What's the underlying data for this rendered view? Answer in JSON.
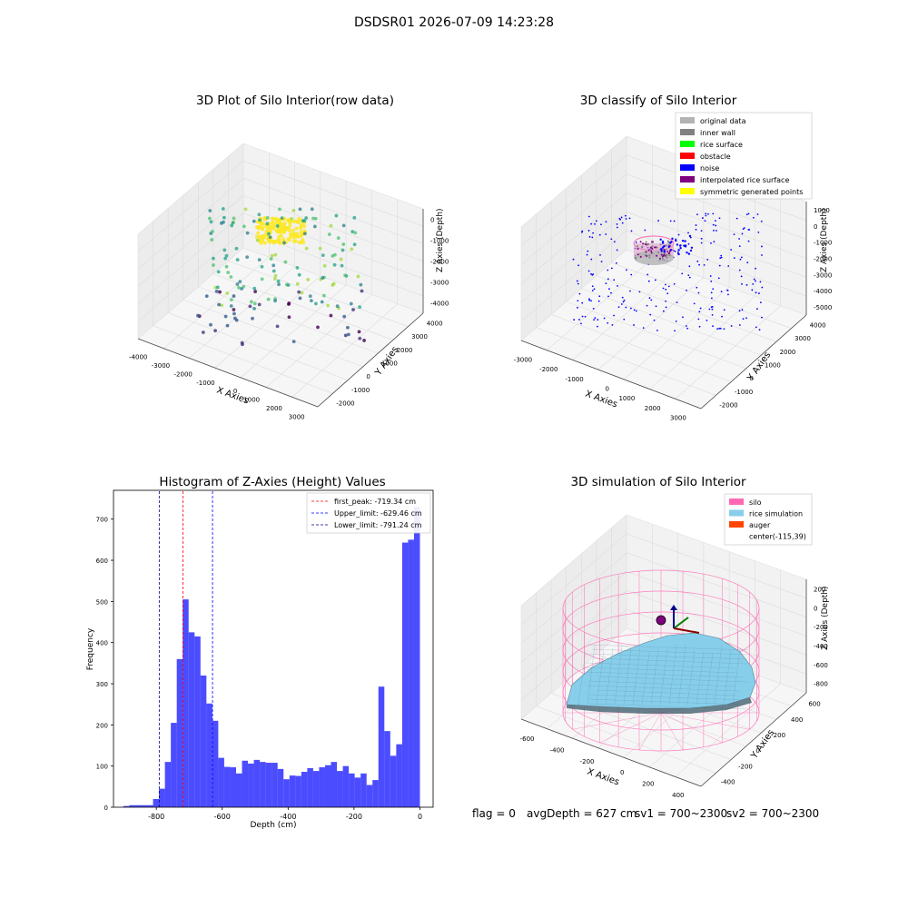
{
  "suptitle": "DSDSR01 2026-07-09 14:23:28",
  "footer": {
    "flag": "flag = 0",
    "avg_depth": "avgDepth = 627 cm",
    "sv1": "sv1 = 700~2300",
    "sv2": "sv2 = 700~2300"
  },
  "chart_data": [
    {
      "type": "scatter",
      "title": "3D Plot of Silo Interior(row data)",
      "xlabel": "X Axies",
      "ylabel": "Y Axies",
      "zlabel": "Z Axies (Depth)",
      "x_ticks": [
        -4000,
        -3000,
        -2000,
        -1000,
        0,
        1000,
        2000,
        3000
      ],
      "y_ticks": [
        -2000,
        -1000,
        0,
        1000,
        2000,
        3000,
        4000
      ],
      "z_ticks": [
        0,
        -1000,
        -2000,
        -3000,
        -4000
      ],
      "colormap": "viridis",
      "grid": true
    },
    {
      "type": "scatter",
      "title": "3D classify of Silo Interior",
      "xlabel": "X Axies",
      "ylabel": "Y Axies",
      "zlabel": "Z Axies (Depth)",
      "x_ticks": [
        -3000,
        -2000,
        -1000,
        0,
        1000,
        2000,
        3000
      ],
      "y_ticks": [
        -2000,
        -1000,
        0,
        1000,
        2000,
        3000,
        4000
      ],
      "z_ticks": [
        1000,
        0,
        -1000,
        -2000,
        -3000,
        -4000,
        -5000
      ],
      "legend_position": "top-right",
      "legend": [
        {
          "label": "original data",
          "color": "#b3b3b3"
        },
        {
          "label": "inner wall",
          "color": "#808080"
        },
        {
          "label": "rice surface",
          "color": "#00ff00"
        },
        {
          "label": "obstacle",
          "color": "#ff0000"
        },
        {
          "label": "noise",
          "color": "#0000ff"
        },
        {
          "label": "interpolated rice surface",
          "color": "#800080"
        },
        {
          "label": "symmetric generated points",
          "color": "#ffff00"
        }
      ],
      "grid": true
    },
    {
      "type": "bar",
      "title": "Histogram of Z-Axies (Height) Values",
      "xlabel": "Depth (cm)",
      "ylabel": "Frequency",
      "xlim": [
        -930,
        40
      ],
      "ylim": [
        0,
        770
      ],
      "x_ticks": [
        -800,
        -600,
        -400,
        -200,
        0
      ],
      "y_ticks": [
        0,
        100,
        200,
        300,
        400,
        500,
        600,
        700
      ],
      "bar_color": "#0000ff",
      "bin_width": 18,
      "bins": [
        {
          "x": -900,
          "count": 3
        },
        {
          "x": -882,
          "count": 5
        },
        {
          "x": -864,
          "count": 5
        },
        {
          "x": -846,
          "count": 5
        },
        {
          "x": -828,
          "count": 5
        },
        {
          "x": -810,
          "count": 20
        },
        {
          "x": -792,
          "count": 45
        },
        {
          "x": -774,
          "count": 110
        },
        {
          "x": -756,
          "count": 205
        },
        {
          "x": -738,
          "count": 360
        },
        {
          "x": -720,
          "count": 505
        },
        {
          "x": -702,
          "count": 425
        },
        {
          "x": -684,
          "count": 415
        },
        {
          "x": -666,
          "count": 320
        },
        {
          "x": -648,
          "count": 252
        },
        {
          "x": -630,
          "count": 210
        },
        {
          "x": -612,
          "count": 120
        },
        {
          "x": -594,
          "count": 98
        },
        {
          "x": -576,
          "count": 97
        },
        {
          "x": -558,
          "count": 82
        },
        {
          "x": -540,
          "count": 113
        },
        {
          "x": -522,
          "count": 106
        },
        {
          "x": -504,
          "count": 115
        },
        {
          "x": -486,
          "count": 110
        },
        {
          "x": -468,
          "count": 108
        },
        {
          "x": -450,
          "count": 108
        },
        {
          "x": -432,
          "count": 93
        },
        {
          "x": -414,
          "count": 68
        },
        {
          "x": -396,
          "count": 77
        },
        {
          "x": -378,
          "count": 76
        },
        {
          "x": -360,
          "count": 86
        },
        {
          "x": -342,
          "count": 95
        },
        {
          "x": -324,
          "count": 88
        },
        {
          "x": -306,
          "count": 97
        },
        {
          "x": -288,
          "count": 102
        },
        {
          "x": -270,
          "count": 110
        },
        {
          "x": -252,
          "count": 88
        },
        {
          "x": -234,
          "count": 100
        },
        {
          "x": -216,
          "count": 82
        },
        {
          "x": -198,
          "count": 72
        },
        {
          "x": -180,
          "count": 82
        },
        {
          "x": -162,
          "count": 54
        },
        {
          "x": -144,
          "count": 66
        },
        {
          "x": -126,
          "count": 293
        },
        {
          "x": -108,
          "count": 185
        },
        {
          "x": -90,
          "count": 125
        },
        {
          "x": -72,
          "count": 153
        },
        {
          "x": -54,
          "count": 643
        },
        {
          "x": -36,
          "count": 650
        },
        {
          "x": -18,
          "count": 730
        }
      ],
      "vlines": [
        {
          "label": "first_peak: -719.34 cm",
          "x": -719.34,
          "color": "#ff0000"
        },
        {
          "label": "Upper_limit: -629.46 cm",
          "x": -629.46,
          "color": "#0000ff"
        },
        {
          "label": "Lower_limit: -791.24 cm",
          "x": -791.24,
          "color": "#00008b"
        }
      ],
      "legend_position": "top-right"
    },
    {
      "type": "area",
      "title": "3D simulation of Silo Interior",
      "xlabel": "X Axies",
      "ylabel": "Y Axies",
      "zlabel": "Z Axies (Depth)",
      "x_ticks": [
        -600,
        -400,
        -200,
        0,
        200,
        400
      ],
      "y_ticks": [
        -400,
        -200,
        0,
        200,
        400,
        600
      ],
      "z_ticks": [
        200,
        0,
        -200,
        -400,
        -600,
        -800
      ],
      "legend_position": "top-right",
      "legend": [
        {
          "label": "silo",
          "color": "#ff69b4"
        },
        {
          "label": "rice simulation",
          "color": "#87ceeb"
        },
        {
          "label": "auger",
          "color": "#ff4500"
        },
        {
          "label": "center(-115,39)",
          "color": ""
        }
      ],
      "grid": true
    }
  ]
}
